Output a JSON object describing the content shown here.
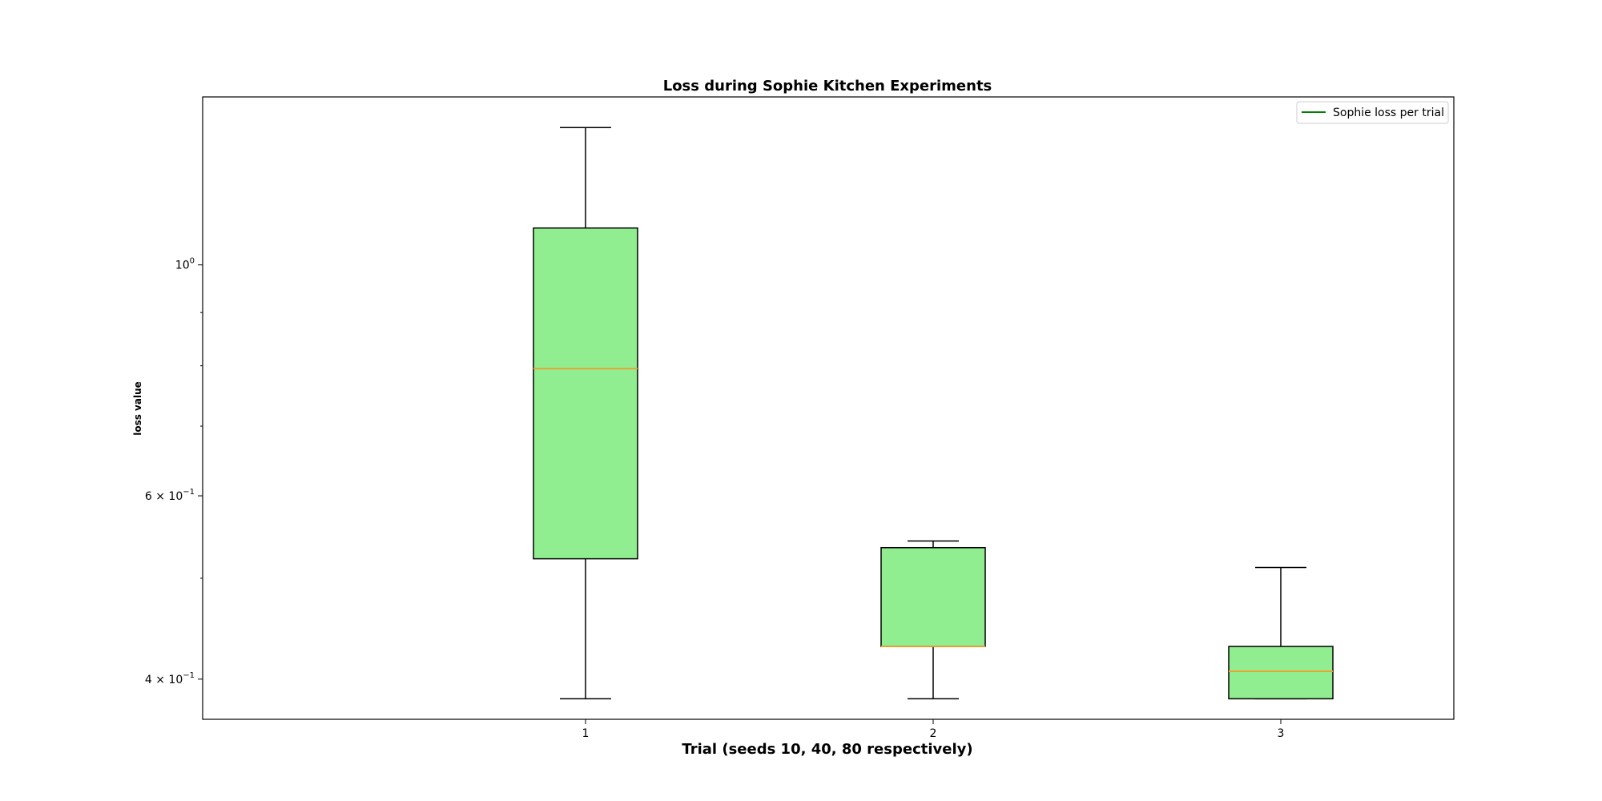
{
  "chart_data": {
    "type": "box",
    "title": "Loss during Sophie Kitchen Experiments",
    "xlabel": "Trial (seeds 10, 40, 80 respectively)",
    "ylabel": "loss value",
    "yscale": "log",
    "ylim": [
      0.366,
      1.45
    ],
    "categories": [
      "1",
      "2",
      "3"
    ],
    "ytick_labels": [
      {
        "value": 1.0,
        "base": "10",
        "exp": "0",
        "prefix": ""
      },
      {
        "value": 0.6,
        "base": "10",
        "exp": "−1",
        "prefix": "6 × "
      },
      {
        "value": 0.4,
        "base": "10",
        "exp": "−1",
        "prefix": "4 × "
      }
    ],
    "minor_ticks": [
      0.5,
      0.7,
      0.8,
      0.9
    ],
    "boxes": [
      {
        "category": "1",
        "whisker_low": 0.383,
        "q1": 0.522,
        "median": 0.795,
        "q3": 1.085,
        "whisker_high": 1.355
      },
      {
        "category": "2",
        "whisker_low": 0.383,
        "q1": 0.43,
        "median": 0.43,
        "q3": 0.535,
        "whisker_high": 0.543
      },
      {
        "category": "3",
        "whisker_low": 0.383,
        "q1": 0.383,
        "median": 0.407,
        "q3": 0.43,
        "whisker_high": 0.512
      }
    ],
    "legend": {
      "label": "Sophie loss per trial",
      "position": "top-right"
    },
    "grid": false,
    "colors": {
      "box_fill": "#90ee90",
      "median": "#f0a030",
      "legend_line": "#008000",
      "edge": "#000000"
    }
  }
}
